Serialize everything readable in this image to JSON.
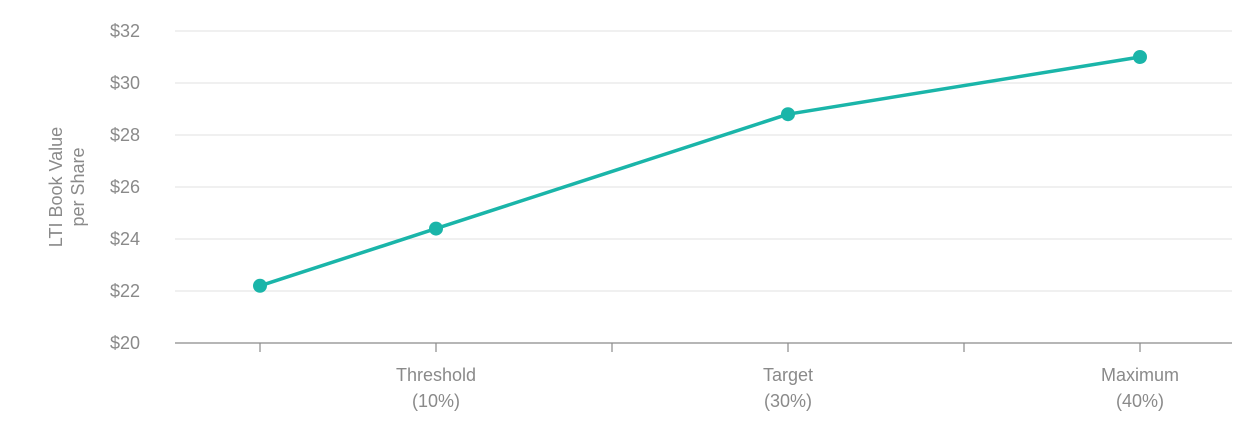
{
  "chart_data": {
    "type": "line",
    "title": "",
    "ylabel": [
      "LTI Book Value",
      "per Share"
    ],
    "xlabel": "",
    "ylim": [
      20,
      32
    ],
    "y_ticks": [
      20,
      22,
      24,
      26,
      28,
      30,
      32
    ],
    "y_tick_labels": [
      "$20",
      "$22",
      "$24",
      "$26",
      "$28",
      "$30",
      "$32"
    ],
    "x_tick_count": 6,
    "x_labels": [
      {
        "tick": 1,
        "lines": [
          "Threshold",
          "(10%)"
        ]
      },
      {
        "tick": 3,
        "lines": [
          "Target",
          "(30%)"
        ]
      },
      {
        "tick": 5,
        "lines": [
          "Maximum",
          "(40%)"
        ]
      }
    ],
    "grid": true,
    "series": [
      {
        "color": "#1ab5a9",
        "points": [
          {
            "tick": 0,
            "value": 22.2
          },
          {
            "tick": 1,
            "value": 24.4
          },
          {
            "tick": 3,
            "value": 28.8
          },
          {
            "tick": 5,
            "value": 31.0
          }
        ]
      }
    ],
    "colors": {
      "grid": "#e6e6e6",
      "axis": "#8a8a8a",
      "text": "#8a8a8a"
    }
  }
}
